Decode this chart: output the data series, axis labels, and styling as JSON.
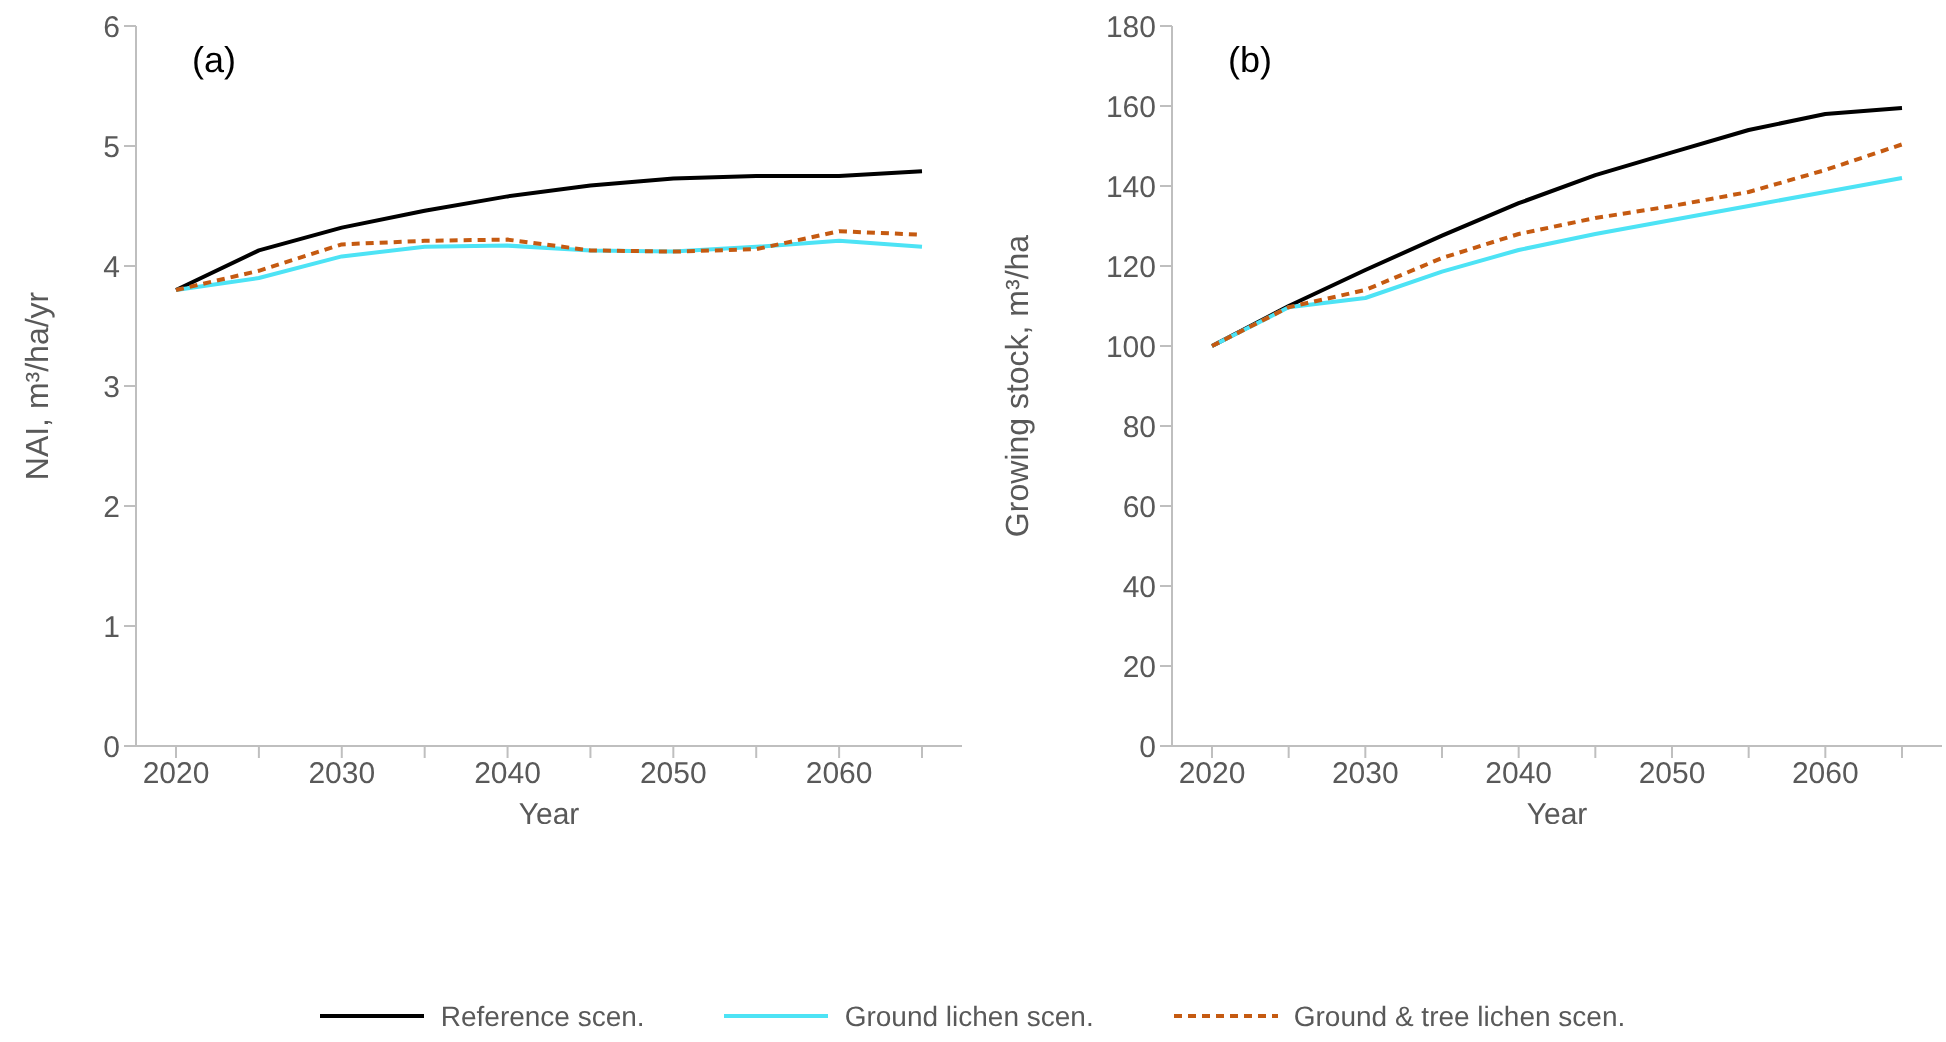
{
  "chart_data": [
    {
      "type": "line",
      "title": "(a)",
      "xlabel": "Year",
      "ylabel": "NAI, m³/ha/yr",
      "categories": [
        "2020",
        null,
        "2030",
        null,
        "2040",
        null,
        "2050",
        null,
        "2060",
        null
      ],
      "series": [
        {
          "name": "Reference scen.",
          "color": "#000000",
          "line_style": "solid",
          "values": [
            3.8,
            4.13,
            4.32,
            4.46,
            4.58,
            4.67,
            4.73,
            4.75,
            4.75,
            4.79
          ]
        },
        {
          "name": "Ground lichen scen.",
          "color": "#4de3f5",
          "line_style": "solid",
          "values": [
            3.8,
            3.9,
            4.08,
            4.16,
            4.17,
            4.13,
            4.12,
            4.16,
            4.21,
            4.16
          ]
        },
        {
          "name": "Ground & tree lichen scen.",
          "color": "#c55a11",
          "line_style": "dashed",
          "values": [
            3.8,
            3.96,
            4.18,
            4.21,
            4.22,
            4.13,
            4.12,
            4.14,
            4.29,
            4.26
          ]
        }
      ],
      "ylim": [
        0,
        6
      ],
      "yticks": [
        0,
        1,
        2,
        3,
        4,
        5,
        6
      ],
      "grid": false,
      "marker": "none",
      "legend": "bottom"
    },
    {
      "type": "line",
      "title": "(b)",
      "xlabel": "Year",
      "ylabel": "Growing stock, m³/ha",
      "categories": [
        "2020",
        null,
        "2030",
        null,
        "2040",
        null,
        "2050",
        null,
        "2060",
        null
      ],
      "series": [
        {
          "name": "Reference scen.",
          "color": "#000000",
          "line_style": "solid",
          "values": [
            100,
            110,
            119,
            127.6,
            135.7,
            142.7,
            148.4,
            154,
            158,
            159.5
          ]
        },
        {
          "name": "Ground lichen scen.",
          "color": "#4de3f5",
          "line_style": "solid",
          "values": [
            100,
            109.7,
            112,
            118.6,
            124,
            128,
            131.5,
            135,
            138.5,
            142
          ]
        },
        {
          "name": "Ground & tree lichen scen.",
          "color": "#c55a11",
          "line_style": "dashed",
          "values": [
            100,
            109.7,
            114,
            122,
            128,
            132,
            135,
            138.5,
            144,
            150.4
          ]
        }
      ],
      "ylim": [
        0,
        180
      ],
      "yticks": [
        0,
        20,
        40,
        60,
        80,
        100,
        120,
        140,
        160,
        180
      ],
      "grid": false,
      "marker": "none",
      "legend": "bottom"
    }
  ]
}
